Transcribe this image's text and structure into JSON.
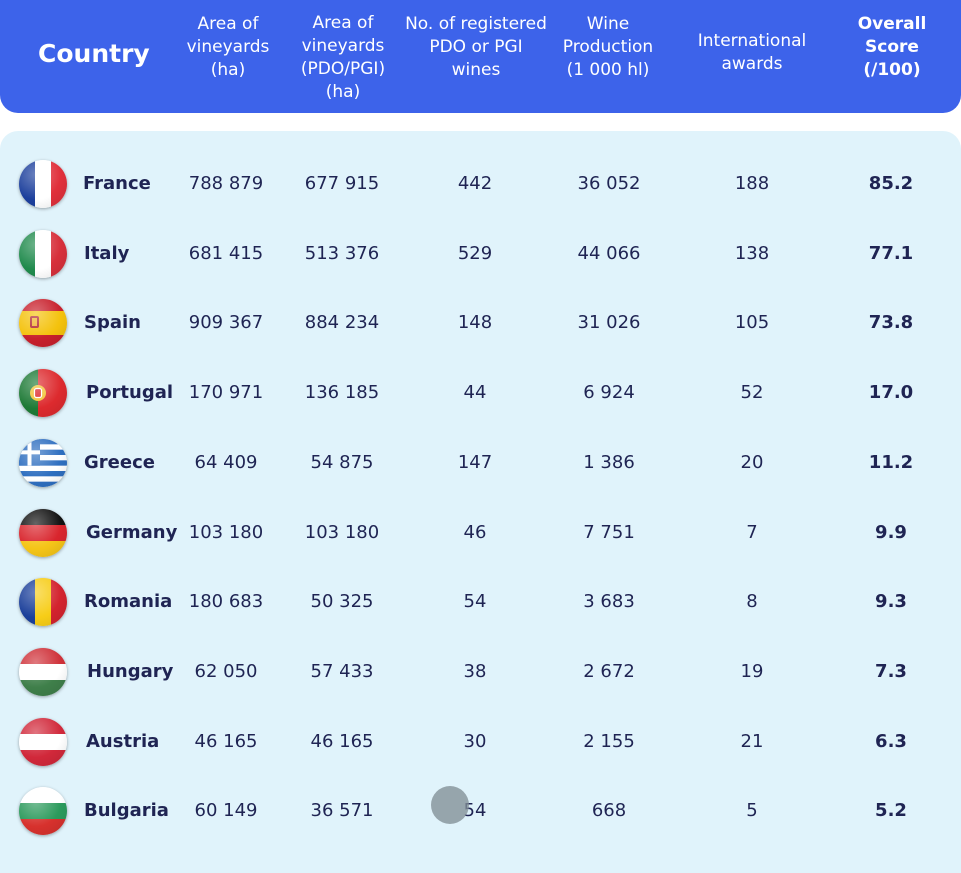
{
  "header": {
    "country": "Country",
    "col1": [
      "Area of",
      "vineyards",
      "(ha)"
    ],
    "col2": [
      "Area of",
      "vineyards",
      "(PDO/PGI)",
      "(ha)"
    ],
    "col3": [
      "No. of registered",
      "PDO or PGI",
      "wines"
    ],
    "col4": [
      "Wine",
      "Production",
      "(1 000 hl)"
    ],
    "col5": [
      "International",
      "awards"
    ],
    "col6": [
      "Overall",
      "Score",
      "(/100)"
    ]
  },
  "rows": [
    {
      "country": "France",
      "flag": "france-flag-icon",
      "area": "788 879",
      "pdo_area": "677 915",
      "registered": "442",
      "production": "36 052",
      "awards": "188",
      "score": "85.2"
    },
    {
      "country": "Italy",
      "flag": "italy-flag-icon",
      "area": "681 415",
      "pdo_area": "513 376",
      "registered": "529",
      "production": "44 066",
      "awards": "138",
      "score": "77.1"
    },
    {
      "country": "Spain",
      "flag": "spain-flag-icon",
      "area": "909 367",
      "pdo_area": "884 234",
      "registered": "148",
      "production": "31 026",
      "awards": "105",
      "score": "73.8"
    },
    {
      "country": "Portugal",
      "flag": "portugal-flag-icon",
      "area": "170 971",
      "pdo_area": "136 185",
      "registered": "44",
      "production": "6 924",
      "awards": "52",
      "score": "17.0"
    },
    {
      "country": "Greece",
      "flag": "greece-flag-icon",
      "area": "64 409",
      "pdo_area": "54 875",
      "registered": "147",
      "production": "1 386",
      "awards": "20",
      "score": "11.2"
    },
    {
      "country": "Germany",
      "flag": "germany-flag-icon",
      "area": "103 180",
      "pdo_area": "103 180",
      "registered": "46",
      "production": "7 751",
      "awards": "7",
      "score": "9.9"
    },
    {
      "country": "Romania",
      "flag": "romania-flag-icon",
      "area": "180 683",
      "pdo_area": "50 325",
      "registered": "54",
      "production": "3 683",
      "awards": "8",
      "score": "9.3"
    },
    {
      "country": "Hungary",
      "flag": "hungary-flag-icon",
      "area": "62 050",
      "pdo_area": "57 433",
      "registered": "38",
      "production": "2 672",
      "awards": "19",
      "score": "7.3"
    },
    {
      "country": "Austria",
      "flag": "austria-flag-icon",
      "area": "46 165",
      "pdo_area": "46 165",
      "registered": "30",
      "production": "2 155",
      "awards": "21",
      "score": "6.3"
    },
    {
      "country": "Bulgaria",
      "flag": "bulgaria-flag-icon",
      "area": "60 149",
      "pdo_area": "36 571",
      "registered": "54",
      "production": "668",
      "awards": "5",
      "score": "5.2"
    }
  ],
  "colors": {
    "header_bg": "#3d63ea",
    "panel_bg": "#e0f3fb",
    "text": "#1f2453"
  }
}
